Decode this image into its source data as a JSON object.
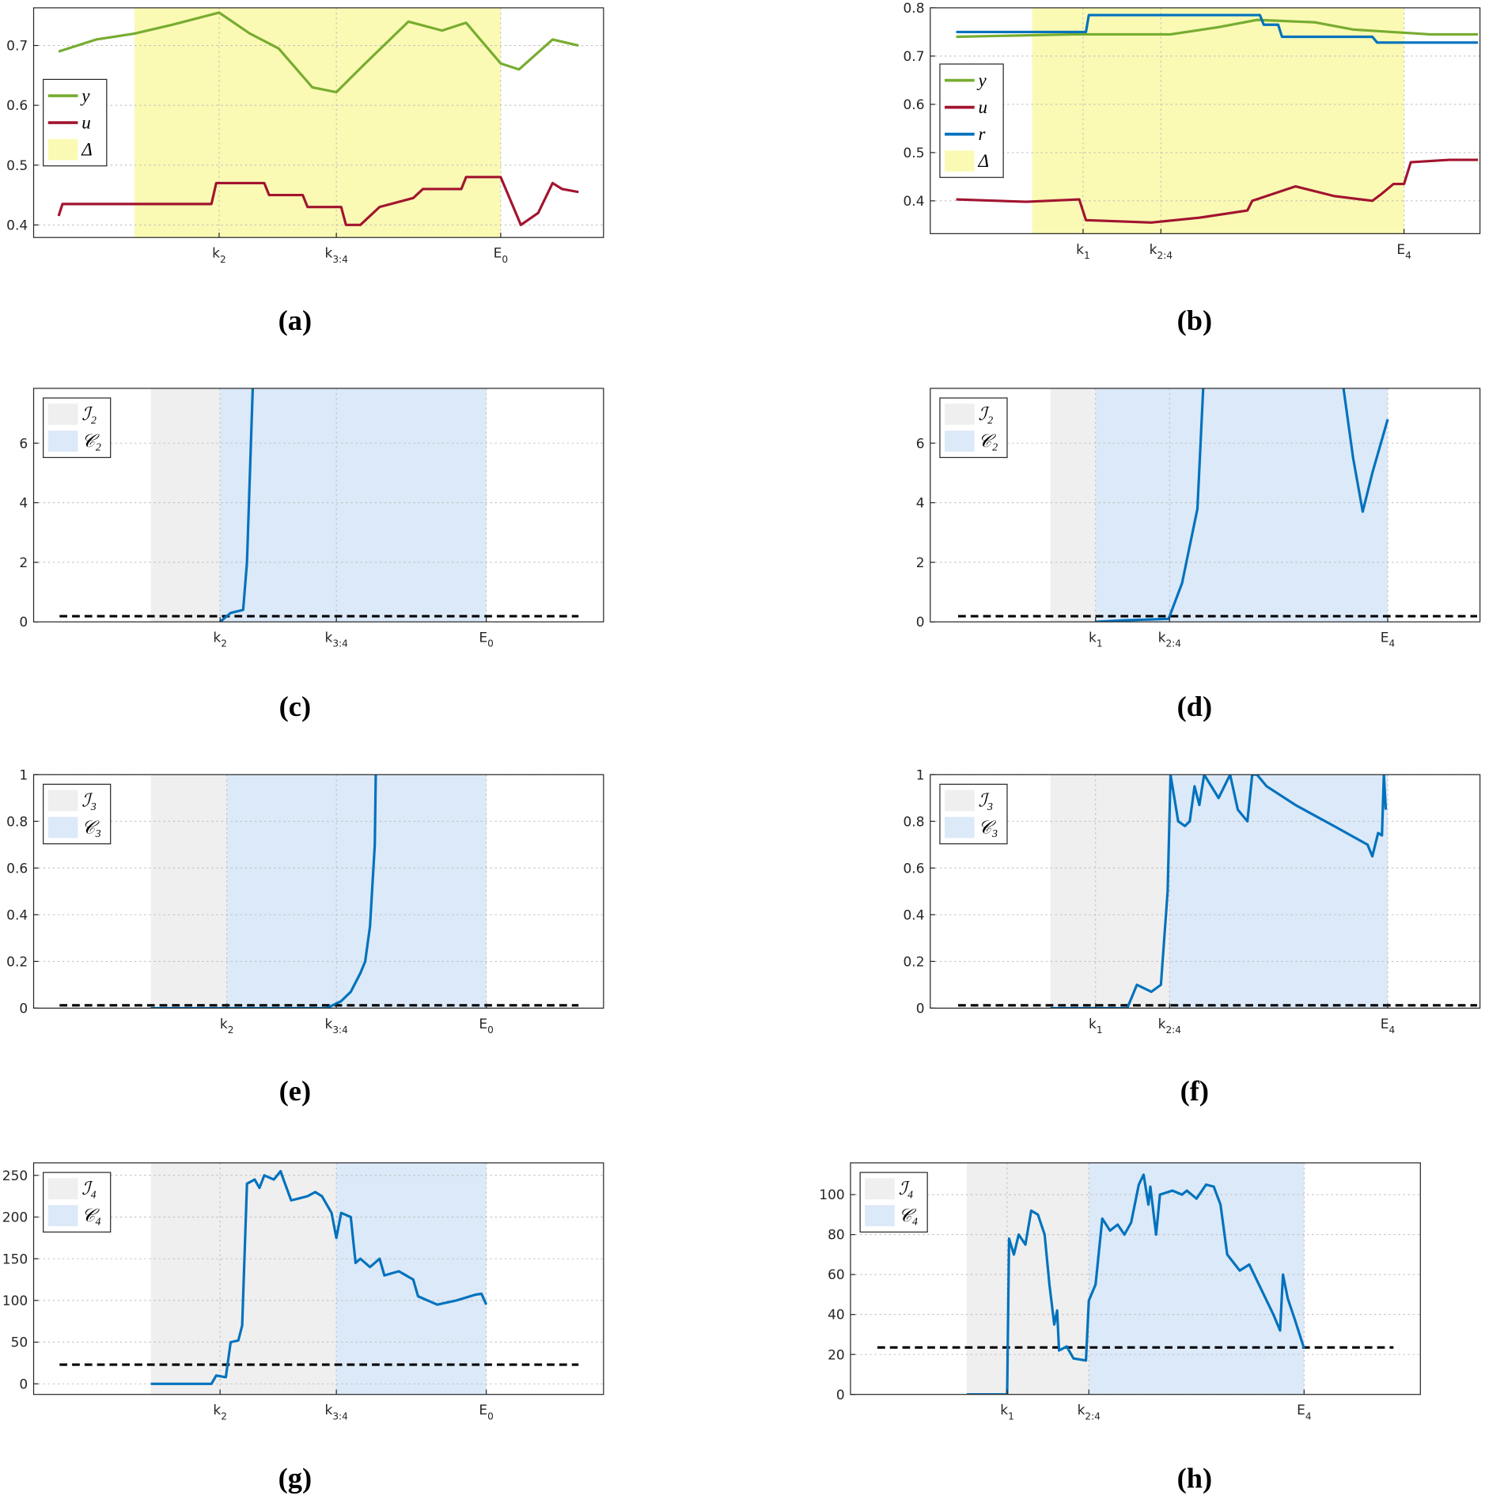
{
  "chart_data": [
    {
      "type": "line",
      "caption": "(a)",
      "xlim": [
        0,
        593
      ],
      "ylim": [
        0.379,
        0.763
      ],
      "yticks": [
        0.4,
        0.5,
        0.6,
        0.7
      ],
      "xticks": [
        {
          "value": 193,
          "label": "k",
          "sub": "2"
        },
        {
          "value": 315,
          "label": "k",
          "sub": "3:4"
        },
        {
          "value": 486,
          "label": "E",
          "sub": "0"
        }
      ],
      "grid": true,
      "legend": "center left",
      "spans": [
        {
          "name": "Δ",
          "color": "#fafab4",
          "x": [
            105,
            486
          ]
        }
      ],
      "series": [
        {
          "name": "y",
          "color": "#77ac30",
          "x": [
            26,
            65,
            105,
            145,
            193,
            225,
            255,
            290,
            315,
            345,
            390,
            425,
            450,
            486,
            505,
            540,
            567
          ],
          "values": [
            0.69,
            0.71,
            0.72,
            0.735,
            0.755,
            0.72,
            0.695,
            0.63,
            0.622,
            0.67,
            0.74,
            0.725,
            0.738,
            0.67,
            0.66,
            0.71,
            0.7
          ]
        },
        {
          "name": "u",
          "color": "#a2142f",
          "x": [
            26,
            30,
            185,
            190,
            240,
            245,
            280,
            285,
            320,
            325,
            340,
            360,
            395,
            405,
            445,
            450,
            486,
            507,
            525,
            540,
            550,
            567
          ],
          "values": [
            0.415,
            0.435,
            0.435,
            0.47,
            0.47,
            0.45,
            0.45,
            0.43,
            0.43,
            0.4,
            0.4,
            0.43,
            0.445,
            0.46,
            0.46,
            0.48,
            0.48,
            0.4,
            0.42,
            0.47,
            0.46,
            0.455
          ]
        }
      ]
    },
    {
      "type": "line",
      "caption": "(b)",
      "xlim": [
        0,
        572
      ],
      "ylim": [
        0.332,
        0.8
      ],
      "yticks": [
        0.4,
        0.5,
        0.6,
        0.7,
        0.8
      ],
      "xticks": [
        {
          "value": 159,
          "label": "k",
          "sub": "1"
        },
        {
          "value": 240,
          "label": "k",
          "sub": "2:4"
        },
        {
          "value": 493,
          "label": "E",
          "sub": "4"
        }
      ],
      "grid": true,
      "legend": "center left",
      "spans": [
        {
          "name": "Δ",
          "color": "#fafab4",
          "x": [
            106,
            493
          ]
        }
      ],
      "series": [
        {
          "name": "y",
          "color": "#77ac30",
          "x": [
            27,
            150,
            250,
            300,
            340,
            400,
            440,
            480,
            520,
            570
          ],
          "values": [
            0.74,
            0.745,
            0.745,
            0.76,
            0.775,
            0.77,
            0.755,
            0.75,
            0.745,
            0.745
          ]
        },
        {
          "name": "u",
          "color": "#a2142f",
          "x": [
            27,
            100,
            155,
            162,
            230,
            280,
            330,
            335,
            380,
            420,
            460,
            470,
            482,
            493,
            500,
            540,
            570
          ],
          "values": [
            0.403,
            0.398,
            0.403,
            0.36,
            0.355,
            0.365,
            0.38,
            0.4,
            0.43,
            0.41,
            0.4,
            0.415,
            0.435,
            0.435,
            0.48,
            0.485,
            0.485
          ]
        },
        {
          "name": "r",
          "color": "#0072bd",
          "x": [
            27,
            162,
            165,
            343,
            347,
            362,
            366,
            460,
            465,
            570
          ],
          "values": [
            0.75,
            0.75,
            0.785,
            0.785,
            0.765,
            0.765,
            0.74,
            0.74,
            0.728,
            0.728
          ]
        }
      ]
    },
    {
      "type": "line",
      "caption": "(c)",
      "xlim": [
        0,
        593
      ],
      "ylim": [
        0,
        7.84
      ],
      "yticks": [
        0,
        2,
        4,
        6
      ],
      "xticks": [
        {
          "value": 194,
          "label": "k",
          "sub": "2"
        },
        {
          "value": 315,
          "label": "k",
          "sub": "3:4"
        },
        {
          "value": 471,
          "label": "E",
          "sub": "0"
        }
      ],
      "grid": true,
      "legend": "upper left",
      "spans": [
        {
          "name": "ℐ₂",
          "color": "#efefef",
          "x": [
            122,
            194
          ]
        },
        {
          "name": "𝒞₂",
          "color": "#dce9f8",
          "x": [
            194,
            471
          ]
        }
      ],
      "hline": {
        "value": 0.19,
        "x": [
          27,
          567
        ]
      },
      "series": [
        {
          "color": "#0072bd",
          "x": [
            194,
            205,
            218,
            222,
            228
          ],
          "values": [
            0,
            0.3,
            0.4,
            2,
            7.84
          ]
        }
      ]
    },
    {
      "type": "line",
      "caption": "(d)",
      "xlim": [
        0,
        572
      ],
      "ylim": [
        0,
        7.84
      ],
      "yticks": [
        0,
        2,
        4,
        6
      ],
      "xticks": [
        {
          "value": 172,
          "label": "k",
          "sub": "1"
        },
        {
          "value": 249,
          "label": "k",
          "sub": "2:4"
        },
        {
          "value": 476,
          "label": "E",
          "sub": "4"
        }
      ],
      "grid": true,
      "legend": "upper left",
      "spans": [
        {
          "name": "ℐ₂",
          "color": "#efefef",
          "x": [
            125,
            172
          ]
        },
        {
          "name": "𝒞₂",
          "color": "#dce9f8",
          "x": [
            172,
            476
          ]
        }
      ],
      "hline": {
        "value": 0.19,
        "x": [
          29,
          569
        ]
      },
      "series": [
        {
          "color": "#0072bd",
          "x": [
            172,
            200,
            248,
            262,
            278,
            284,
            357,
            430,
            440,
            450,
            460,
            476
          ],
          "values": [
            0,
            0.05,
            0.1,
            1.3,
            3.8,
            7.84,
            null,
            7.84,
            5.5,
            3.7,
            5,
            6.8
          ]
        }
      ]
    },
    {
      "type": "line",
      "caption": "(e)",
      "xlim": [
        0,
        593
      ],
      "ylim": [
        0,
        1
      ],
      "yticks": [
        0,
        0.2,
        0.4,
        0.6,
        0.8,
        1
      ],
      "xticks": [
        {
          "value": 201,
          "label": "k",
          "sub": "2"
        },
        {
          "value": 315,
          "label": "k",
          "sub": "3:4"
        },
        {
          "value": 471,
          "label": "E",
          "sub": "0"
        }
      ],
      "grid": true,
      "legend": "upper left",
      "spans": [
        {
          "name": "ℐ₃",
          "color": "#efefef",
          "x": [
            122,
            201
          ]
        },
        {
          "name": "𝒞₃",
          "color": "#dce9f8",
          "x": [
            201,
            471
          ]
        }
      ],
      "hline": {
        "value": 0.012,
        "x": [
          27,
          567
        ]
      },
      "series": [
        {
          "color": "#0072bd",
          "x": [
            122,
            305,
            320,
            330,
            340,
            345,
            350,
            355,
            356
          ],
          "values": [
            0,
            0,
            0.03,
            0.07,
            0.15,
            0.2,
            0.35,
            0.7,
            1
          ]
        }
      ]
    },
    {
      "type": "line",
      "caption": "(f)",
      "xlim": [
        0,
        572
      ],
      "ylim": [
        0,
        1
      ],
      "yticks": [
        0,
        0.2,
        0.4,
        0.6,
        0.8,
        1
      ],
      "xticks": [
        {
          "value": 172,
          "label": "k",
          "sub": "1"
        },
        {
          "value": 249,
          "label": "k",
          "sub": "2:4"
        },
        {
          "value": 476,
          "label": "E",
          "sub": "4"
        }
      ],
      "grid": true,
      "legend": "upper left",
      "spans": [
        {
          "name": "ℐ₃",
          "color": "#efefef",
          "x": [
            125,
            249
          ]
        },
        {
          "name": "𝒞₃",
          "color": "#dce9f8",
          "x": [
            249,
            476
          ]
        }
      ],
      "hline": {
        "value": 0.012,
        "x": [
          29,
          569
        ]
      },
      "series": [
        {
          "color": "#0072bd",
          "x": [
            125,
            205,
            215,
            230,
            240,
            247,
            250,
            258,
            265,
            270,
            275,
            280,
            285,
            300,
            312,
            320,
            330,
            335,
            340,
            350,
            380,
            420,
            455,
            460,
            466,
            470,
            472,
            474
          ],
          "values": [
            0,
            0,
            0.1,
            0.07,
            0.1,
            0.5,
            1,
            0.8,
            0.78,
            0.8,
            0.95,
            0.87,
            1,
            0.9,
            1,
            0.85,
            0.8,
            1,
            1,
            0.95,
            0.87,
            0.78,
            0.7,
            0.65,
            0.75,
            0.74,
            1,
            0.85
          ]
        }
      ]
    },
    {
      "type": "line",
      "caption": "(g)",
      "xlim": [
        0,
        593
      ],
      "ylim": [
        -12.7,
        265
      ],
      "yticks": [
        0,
        50,
        100,
        150,
        200,
        250
      ],
      "xticks": [
        {
          "value": 194,
          "label": "k",
          "sub": "2"
        },
        {
          "value": 315,
          "label": "k",
          "sub": "3:4"
        },
        {
          "value": 471,
          "label": "E",
          "sub": "0"
        }
      ],
      "grid": true,
      "legend": "upper left",
      "spans": [
        {
          "name": "ℐ₄",
          "color": "#efefef",
          "x": [
            122,
            315
          ]
        },
        {
          "name": "𝒞₄",
          "color": "#dce9f8",
          "x": [
            315,
            471
          ]
        }
      ],
      "hline": {
        "value": 23,
        "x": [
          27,
          567
        ]
      },
      "series": [
        {
          "color": "#0072bd",
          "x": [
            122,
            185,
            190,
            200,
            205,
            213,
            217,
            222,
            230,
            235,
            240,
            250,
            257,
            260,
            268,
            285,
            293,
            300,
            310,
            315,
            320,
            330,
            335,
            340,
            350,
            360,
            365,
            380,
            395,
            400,
            410,
            420,
            440,
            460,
            466,
            471
          ],
          "values": [
            0,
            0,
            10,
            8,
            50,
            52,
            70,
            240,
            245,
            235,
            250,
            245,
            255,
            245,
            220,
            225,
            230,
            225,
            205,
            175,
            205,
            200,
            145,
            150,
            140,
            150,
            130,
            135,
            125,
            105,
            100,
            95,
            100,
            107,
            108,
            95
          ]
        }
      ]
    },
    {
      "type": "line",
      "caption": "(h)",
      "xlim": [
        0,
        593
      ],
      "ylim": [
        0,
        115.9
      ],
      "yticks": [
        0,
        20,
        40,
        60,
        80,
        100
      ],
      "xticks": [
        {
          "value": 163,
          "label": "k",
          "sub": "1"
        },
        {
          "value": 248,
          "label": "k",
          "sub": "2:4"
        },
        {
          "value": 472,
          "label": "E",
          "sub": "4"
        }
      ],
      "grid": true,
      "legend": "upper left",
      "spans": [
        {
          "name": "ℐ₄",
          "color": "#efefef",
          "x": [
            121,
            248
          ]
        },
        {
          "name": "𝒞₄",
          "color": "#dce9f8",
          "x": [
            248,
            472
          ]
        }
      ],
      "hline": {
        "value": 23.5,
        "x": [
          28,
          565
        ]
      },
      "series": [
        {
          "color": "#0072bd",
          "x": [
            121,
            163,
            165,
            170,
            175,
            182,
            188,
            195,
            202,
            207,
            212,
            215,
            217,
            225,
            232,
            245,
            248,
            255,
            262,
            270,
            278,
            285,
            292,
            300,
            305,
            310,
            312,
            318,
            322,
            335,
            345,
            350,
            360,
            370,
            378,
            385,
            392,
            405,
            415,
            425,
            440,
            447,
            450,
            455,
            462,
            472
          ],
          "values": [
            0,
            0,
            78,
            70,
            80,
            75,
            92,
            90,
            80,
            55,
            35,
            42,
            22,
            24,
            18,
            17,
            47,
            55,
            88,
            82,
            85,
            80,
            86,
            105,
            110,
            95,
            104,
            80,
            100,
            102,
            100,
            102,
            98,
            105,
            104,
            95,
            70,
            62,
            65,
            55,
            40,
            32,
            60,
            48,
            38,
            23
          ]
        }
      ]
    }
  ]
}
